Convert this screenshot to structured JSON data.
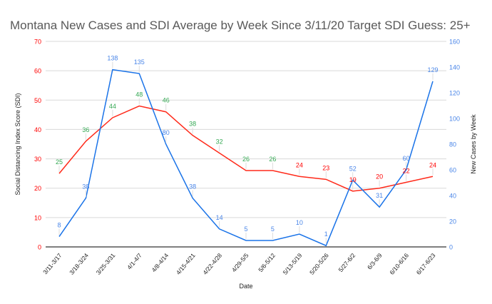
{
  "chart_data": {
    "type": "line",
    "title": "Montana New Cases and SDI Average by Week Since 3/11/20 Target SDI Guess: 25+",
    "xlabel": "Date",
    "ylabel_left": "Social Distancing Index Score (SDI)",
    "ylabel_right": "New Cases by Week",
    "ylim_left": [
      0,
      70
    ],
    "ylim_right": [
      0,
      160
    ],
    "yticks_left": [
      0,
      10,
      20,
      30,
      40,
      50,
      60,
      70
    ],
    "yticks_right": [
      0,
      20,
      40,
      60,
      80,
      100,
      120,
      140,
      160
    ],
    "grid": true,
    "categories": [
      "3/11-3/17",
      "3/18-3/24",
      "3/25-3/31",
      "4/1-4/7",
      "4/8-4/14",
      "4/15-4/21",
      "4/22-4/28",
      "4/29-5/5",
      "5/6-5/12",
      "5/13-5/19",
      "5/20-5/26",
      "5/27-6/2",
      "6/3-6/9",
      "6/10-6/16",
      "6/17-6/23"
    ],
    "series": [
      {
        "axis": "left",
        "color": "#ff2a1a",
        "values": [
          25,
          36,
          44,
          48,
          46,
          38,
          32,
          26,
          26,
          24,
          23,
          19,
          20,
          22,
          24
        ],
        "label_colors": [
          "#34a853",
          "#34a853",
          "#34a853",
          "#34a853",
          "#34a853",
          "#34a853",
          "#34a853",
          "#34a853",
          "#34a853",
          "#ff0000",
          "#ff0000",
          "#ff0000",
          "#ff0000",
          "#ff0000",
          "#ff0000"
        ]
      },
      {
        "axis": "right",
        "color": "#1a73e8",
        "values": [
          8,
          38,
          138,
          135,
          80,
          38,
          14,
          5,
          5,
          10,
          1,
          52,
          31,
          60,
          129
        ],
        "label_color": "#4a86e8"
      }
    ],
    "axis_colors": {
      "left": "#ff0000",
      "right": "#4a86e8"
    }
  }
}
